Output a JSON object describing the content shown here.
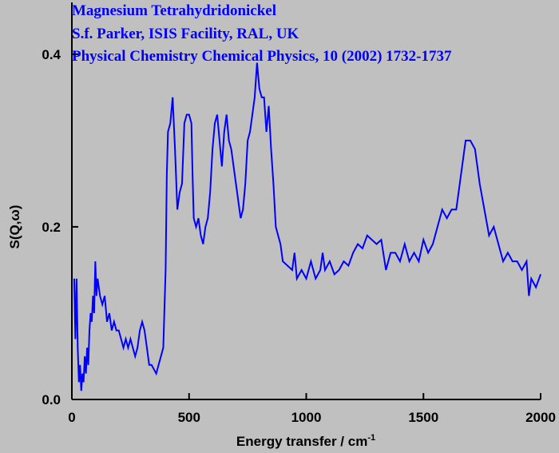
{
  "chart_data": {
    "type": "line",
    "title_lines": [
      "Magnesium Tetrahydridonickel",
      "S.f. Parker, ISIS Facility, RAL, UK",
      "Physical Chemistry Chemical Physics, 10 (2002) 1732-1737"
    ],
    "xlabel": "Energy transfer / cm",
    "xlabel_superscript": "-1",
    "ylabel": "S(Q,ω)",
    "xlim": [
      0,
      2000
    ],
    "ylim": [
      0,
      0.46
    ],
    "xticks": [
      0,
      500,
      1000,
      1500,
      2000
    ],
    "yticks": [
      {
        "value": 0,
        "label": "0.0"
      },
      0.2,
      0.4
    ],
    "x": [
      10,
      15,
      20,
      25,
      30,
      35,
      40,
      45,
      50,
      55,
      60,
      65,
      70,
      75,
      80,
      85,
      90,
      95,
      100,
      105,
      110,
      115,
      120,
      130,
      140,
      150,
      160,
      170,
      180,
      190,
      200,
      210,
      220,
      230,
      240,
      250,
      260,
      270,
      280,
      290,
      300,
      310,
      320,
      330,
      340,
      350,
      360,
      370,
      380,
      390,
      400,
      405,
      410,
      420,
      430,
      440,
      450,
      460,
      470,
      480,
      490,
      500,
      510,
      515,
      520,
      530,
      540,
      550,
      560,
      570,
      580,
      590,
      600,
      610,
      620,
      630,
      640,
      650,
      660,
      670,
      680,
      690,
      700,
      710,
      720,
      730,
      740,
      750,
      760,
      770,
      780,
      790,
      800,
      810,
      820,
      830,
      840,
      850,
      860,
      870,
      880,
      890,
      900,
      920,
      940,
      950,
      960,
      980,
      1000,
      1020,
      1040,
      1060,
      1070,
      1080,
      1100,
      1120,
      1140,
      1160,
      1180,
      1200,
      1220,
      1240,
      1260,
      1280,
      1300,
      1320,
      1340,
      1360,
      1380,
      1400,
      1420,
      1440,
      1460,
      1480,
      1500,
      1520,
      1540,
      1560,
      1580,
      1600,
      1620,
      1640,
      1660,
      1680,
      1700,
      1720,
      1740,
      1760,
      1780,
      1800,
      1820,
      1840,
      1860,
      1880,
      1900,
      1920,
      1940,
      1950,
      1960,
      1980,
      2000
    ],
    "series": [
      {
        "color": "#0000ff",
        "values": [
          0.14,
          0.07,
          0.14,
          0.06,
          0.02,
          0.04,
          0.01,
          0.03,
          0.02,
          0.05,
          0.03,
          0.06,
          0.04,
          0.08,
          0.1,
          0.09,
          0.12,
          0.1,
          0.16,
          0.12,
          0.14,
          0.13,
          0.12,
          0.11,
          0.12,
          0.09,
          0.1,
          0.08,
          0.09,
          0.08,
          0.08,
          0.07,
          0.06,
          0.07,
          0.06,
          0.07,
          0.06,
          0.05,
          0.06,
          0.08,
          0.09,
          0.08,
          0.06,
          0.04,
          0.04,
          0.035,
          0.03,
          0.04,
          0.05,
          0.06,
          0.15,
          0.26,
          0.31,
          0.32,
          0.35,
          0.29,
          0.22,
          0.24,
          0.25,
          0.32,
          0.33,
          0.33,
          0.32,
          0.26,
          0.21,
          0.2,
          0.21,
          0.19,
          0.18,
          0.2,
          0.21,
          0.24,
          0.29,
          0.32,
          0.33,
          0.3,
          0.27,
          0.31,
          0.33,
          0.3,
          0.29,
          0.27,
          0.25,
          0.23,
          0.21,
          0.22,
          0.25,
          0.3,
          0.31,
          0.33,
          0.35,
          0.39,
          0.36,
          0.35,
          0.35,
          0.31,
          0.34,
          0.29,
          0.25,
          0.2,
          0.19,
          0.18,
          0.16,
          0.155,
          0.15,
          0.17,
          0.14,
          0.15,
          0.14,
          0.16,
          0.14,
          0.15,
          0.17,
          0.15,
          0.16,
          0.145,
          0.15,
          0.16,
          0.155,
          0.17,
          0.18,
          0.175,
          0.19,
          0.185,
          0.18,
          0.185,
          0.15,
          0.17,
          0.17,
          0.16,
          0.18,
          0.16,
          0.17,
          0.16,
          0.185,
          0.17,
          0.18,
          0.2,
          0.22,
          0.21,
          0.22,
          0.22,
          0.26,
          0.3,
          0.3,
          0.29,
          0.25,
          0.22,
          0.19,
          0.2,
          0.18,
          0.16,
          0.17,
          0.16,
          0.16,
          0.15,
          0.16,
          0.12,
          0.14,
          0.13,
          0.145
        ]
      }
    ]
  }
}
